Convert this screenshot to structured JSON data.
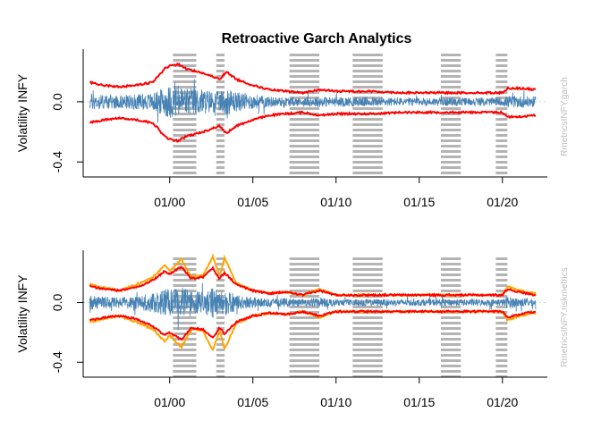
{
  "title": "Retroactive Garch Analytics",
  "colors": {
    "returns": "#4682b4",
    "band_red": "#ff0000",
    "band_orange": "#ffa500",
    "recession": "#b4b4b4",
    "axis": "#000000",
    "side_label": "#bebebe",
    "zero_line": "#add8e6"
  },
  "chart_data": [
    {
      "type": "line",
      "title": "Retroactive Garch Analytics",
      "ylabel": "Volatility INFY",
      "side_label": "RmetricsINFY.garch",
      "x_ticks": [
        "01/00",
        "01/05",
        "01/10",
        "01/15",
        "01/20"
      ],
      "y_ticks": [
        "-0.4",
        "0.0"
      ],
      "ylim": [
        -0.5,
        0.35
      ],
      "grid": false,
      "recession_shading": true,
      "zero_line": true,
      "series": [
        {
          "color": "steelblue",
          "kind": "returns"
        },
        {
          "color": "red",
          "kind": "garch band",
          "upper": [
            [
              1995.2,
              0.13
            ],
            [
              1996.0,
              0.11
            ],
            [
              1997.0,
              0.1
            ],
            [
              1998.0,
              0.11
            ],
            [
              1999.0,
              0.13
            ],
            [
              1999.7,
              0.22
            ],
            [
              2000.0,
              0.24
            ],
            [
              2000.5,
              0.25
            ],
            [
              2001.0,
              0.22
            ],
            [
              2002.0,
              0.19
            ],
            [
              2003.0,
              0.15
            ],
            [
              2003.4,
              0.2
            ],
            [
              2004.0,
              0.15
            ],
            [
              2005.0,
              0.11
            ],
            [
              2006.0,
              0.08
            ],
            [
              2007.0,
              0.07
            ],
            [
              2008.0,
              0.06
            ],
            [
              2009.0,
              0.08
            ],
            [
              2010.0,
              0.07
            ],
            [
              2012.0,
              0.07
            ],
            [
              2014.0,
              0.06
            ],
            [
              2016.0,
              0.06
            ],
            [
              2018.0,
              0.06
            ],
            [
              2020.0,
              0.06
            ],
            [
              2020.3,
              0.09
            ],
            [
              2021.0,
              0.09
            ],
            [
              2022.0,
              0.08
            ]
          ]
        }
      ]
    },
    {
      "type": "line",
      "ylabel": "Volatility INFY",
      "side_label": "RmetricsINFY.riskmetrics",
      "x_ticks": [
        "01/00",
        "01/05",
        "01/10",
        "01/15",
        "01/20"
      ],
      "y_ticks": [
        "-0.4",
        "0.0"
      ],
      "ylim": [
        -0.5,
        0.35
      ],
      "grid": false,
      "recession_shading": true,
      "zero_line": true,
      "series": [
        {
          "color": "steelblue",
          "kind": "returns"
        },
        {
          "color": "orange",
          "kind": "riskmetrics band",
          "upper": [
            [
              1995.2,
              0.12
            ],
            [
              1996.0,
              0.1
            ],
            [
              1997.0,
              0.08
            ],
            [
              1998.0,
              0.12
            ],
            [
              1999.0,
              0.17
            ],
            [
              1999.7,
              0.25
            ],
            [
              2000.0,
              0.21
            ],
            [
              2000.7,
              0.29
            ],
            [
              2001.3,
              0.17
            ],
            [
              2002.0,
              0.18
            ],
            [
              2002.6,
              0.31
            ],
            [
              2003.0,
              0.18
            ],
            [
              2003.3,
              0.3
            ],
            [
              2004.0,
              0.13
            ],
            [
              2005.0,
              0.08
            ],
            [
              2006.0,
              0.06
            ],
            [
              2007.0,
              0.07
            ],
            [
              2008.0,
              0.05
            ],
            [
              2009.0,
              0.09
            ],
            [
              2010.0,
              0.05
            ],
            [
              2012.0,
              0.05
            ],
            [
              2014.0,
              0.05
            ],
            [
              2016.0,
              0.05
            ],
            [
              2018.0,
              0.05
            ],
            [
              2020.0,
              0.05
            ],
            [
              2020.3,
              0.11
            ],
            [
              2021.0,
              0.08
            ],
            [
              2022.0,
              0.06
            ]
          ]
        },
        {
          "color": "red",
          "kind": "garch band",
          "upper": [
            [
              1995.2,
              0.11
            ],
            [
              1996.0,
              0.09
            ],
            [
              1997.0,
              0.08
            ],
            [
              1998.0,
              0.1
            ],
            [
              1999.0,
              0.15
            ],
            [
              1999.7,
              0.21
            ],
            [
              2000.0,
              0.19
            ],
            [
              2000.7,
              0.24
            ],
            [
              2001.3,
              0.16
            ],
            [
              2002.0,
              0.17
            ],
            [
              2002.6,
              0.23
            ],
            [
              2003.0,
              0.16
            ],
            [
              2003.3,
              0.2
            ],
            [
              2004.0,
              0.12
            ],
            [
              2005.0,
              0.08
            ],
            [
              2006.0,
              0.06
            ],
            [
              2007.0,
              0.07
            ],
            [
              2008.0,
              0.05
            ],
            [
              2009.0,
              0.08
            ],
            [
              2010.0,
              0.05
            ],
            [
              2012.0,
              0.05
            ],
            [
              2014.0,
              0.05
            ],
            [
              2016.0,
              0.05
            ],
            [
              2018.0,
              0.05
            ],
            [
              2020.0,
              0.05
            ],
            [
              2020.3,
              0.09
            ],
            [
              2021.0,
              0.07
            ],
            [
              2022.0,
              0.05
            ]
          ]
        }
      ]
    }
  ]
}
